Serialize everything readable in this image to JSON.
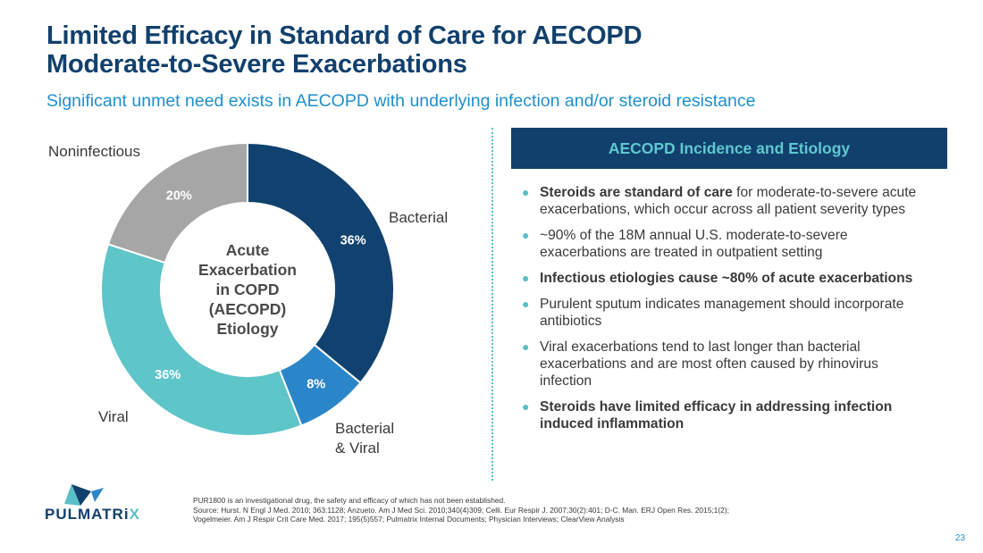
{
  "title_line1": "Limited Efficacy in Standard of Care for AECOPD",
  "title_line2": "Moderate-to-Severe Exacerbations",
  "subtitle": "Significant unmet need exists in AECOPD with underlying infection and/or steroid resistance",
  "chart_data": {
    "type": "pie",
    "variant": "donut",
    "center_label": [
      "Acute",
      "Exacerbation",
      "in COPD",
      "(AECOPD)",
      "Etiology"
    ],
    "slices": [
      {
        "label": "Bacterial",
        "value": 36,
        "value_label": "36%",
        "color": "#11426f",
        "text_color": "#ffffff"
      },
      {
        "label": "Bacterial & Viral",
        "value": 8,
        "value_label": "8%",
        "color": "#2a86c9",
        "text_color": "#ffffff"
      },
      {
        "label": "Viral",
        "value": 36,
        "value_label": "36%",
        "color": "#5ec5c9",
        "text_color": "#ffffff"
      },
      {
        "label": "Noninfectious",
        "value": 20,
        "value_label": "20%",
        "color": "#a6a6a6",
        "text_color": "#ffffff"
      }
    ],
    "slice_labels": {
      "bacterial": "Bacterial",
      "bacterial_viral_line1": "Bacterial",
      "bacterial_viral_line2": "& Viral",
      "viral": "Viral",
      "noninfectious": "Noninfectious"
    }
  },
  "panel": {
    "header": "AECOPD Incidence and Etiology",
    "bullets": [
      {
        "bold": "Steroids are standard of care",
        "text": " for moderate-to-severe acute exacerbations, which occur across all patient severity types"
      },
      {
        "bold": "",
        "text": "~90% of the 18M annual U.S. moderate-to-severe exacerbations are treated in outpatient setting"
      },
      {
        "bold": "Infectious etiologies cause ~80% of acute exacerbations",
        "text": ""
      },
      {
        "bold": "",
        "text": "Purulent sputum indicates management should incorporate antibiotics"
      },
      {
        "bold": "",
        "text": "Viral exacerbations tend to last longer than bacterial exacerbations and are most often caused by rhinovirus infection"
      },
      {
        "bold": "Steroids have limited efficacy in addressing infection induced inflammation",
        "text": ""
      }
    ]
  },
  "logo": {
    "text_main": "PULMATRi",
    "text_x": "X"
  },
  "footnote": {
    "line1": "PUR1800 is an investigational drug, the safety and efficacy of which has not been established.",
    "line2": "Source: Hurst. N Engl J Med. 2010; 363:1128; Anzueto. Am J Med Sci. 2010;340(4)309; Celli. Eur Respir J. 2007;30(2):401; D-C. Man. ERJ Open Res. 2015;1(2);",
    "line3": "Vogelmeier. Am J Respir Crit Care Med. 2017; 195(5)557; Pulmatrix Internal Documents; Physician Interviews; ClearView Analysis"
  },
  "page_number": "23",
  "colors": {
    "navy": "#12406d",
    "blue": "#1f8fce",
    "teal": "#5bbfc6",
    "gray": "#a6a6a6"
  }
}
